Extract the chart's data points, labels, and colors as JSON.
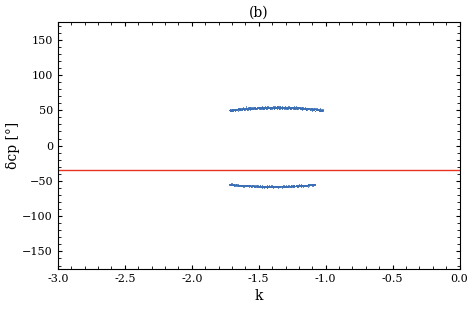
{
  "title": "(b)",
  "xlabel": "k",
  "ylabel": "δcp [°]",
  "xlim": [
    -3.0,
    0.0
  ],
  "ylim": [
    -175,
    175
  ],
  "xticks": [
    -3.0,
    -2.5,
    -2.0,
    -1.5,
    -1.0,
    -0.5,
    0.0
  ],
  "yticks": [
    -150,
    -100,
    -50,
    0,
    50,
    100,
    150
  ],
  "red_line_1": -35,
  "red_color": "#e83323",
  "blue_color": "#3a6fb5",
  "upper_cluster": {
    "k_start": -1.72,
    "k_end": -1.02,
    "y_center": 50,
    "y_spread": 2.5,
    "n_points": 1200
  },
  "lower_cluster": {
    "k_start": -1.72,
    "k_end": -1.08,
    "y_center": -55,
    "y_spread": 2.0,
    "n_points": 900
  },
  "background_color": "#ffffff",
  "title_fontsize": 10,
  "label_fontsize": 10,
  "tick_fontsize": 8
}
